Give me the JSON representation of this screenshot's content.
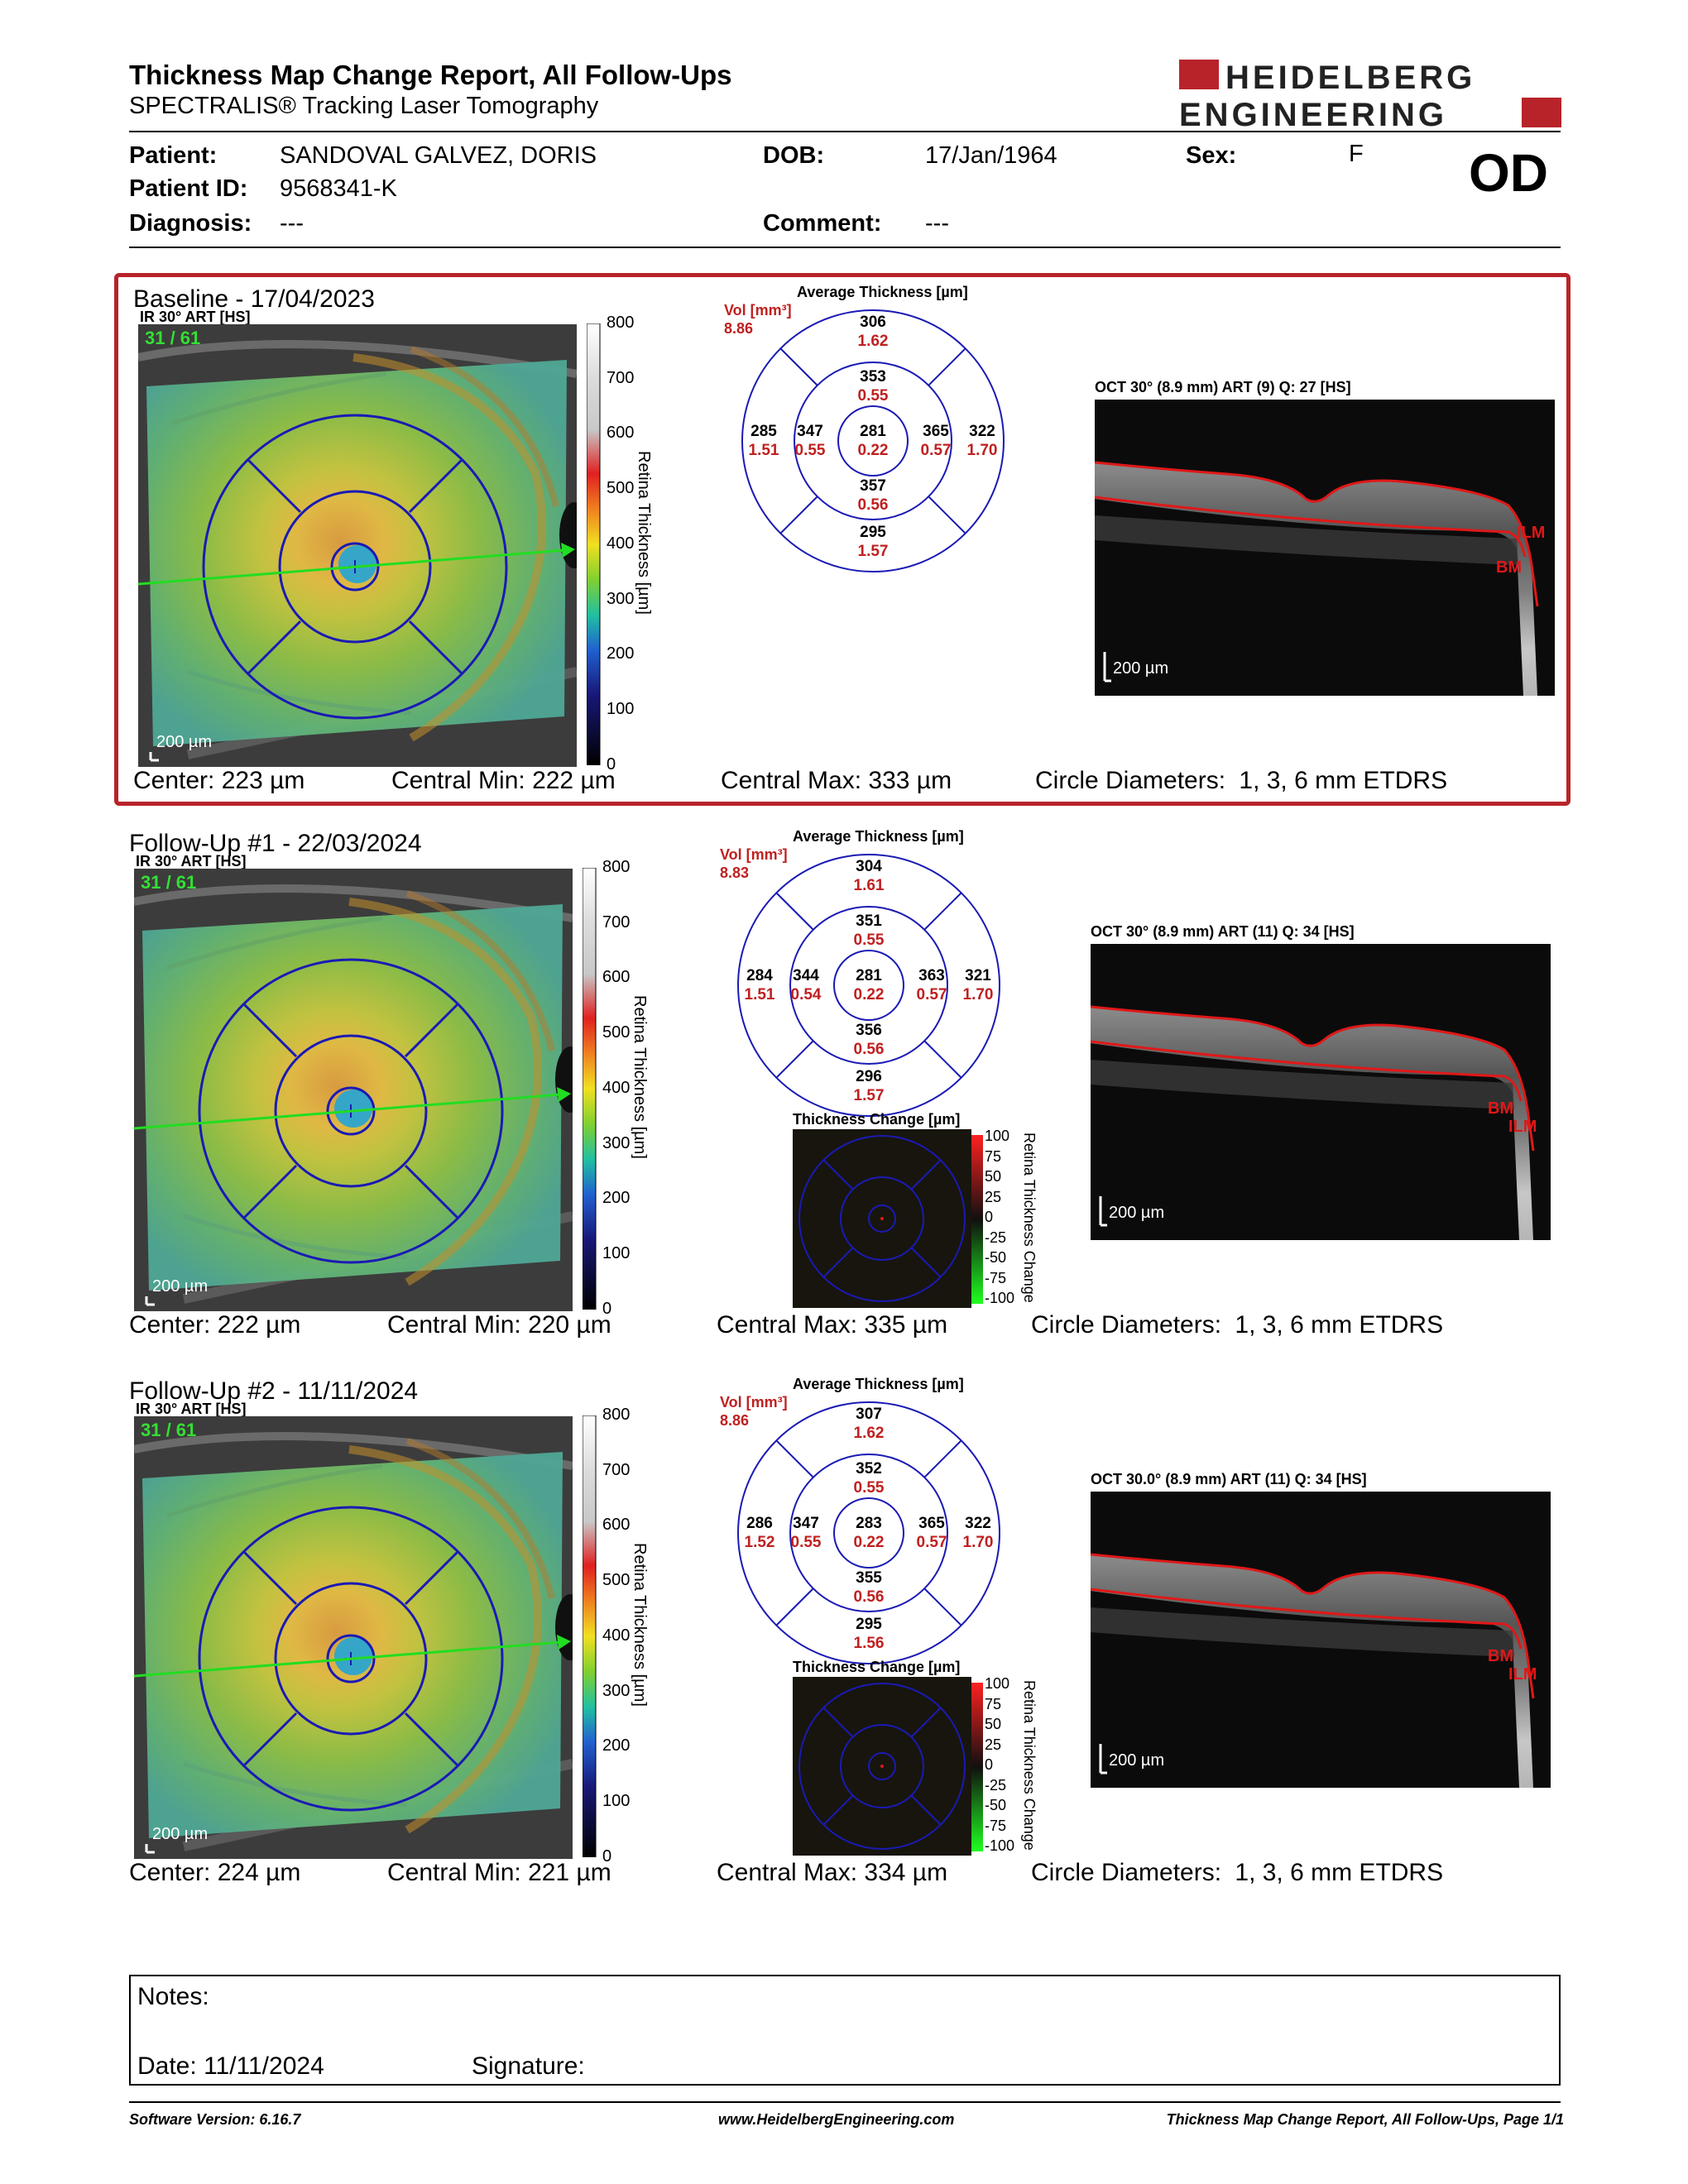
{
  "report": {
    "title": "Thickness Map Change Report, All Follow-Ups",
    "subtitle": "SPECTRALIS® Tracking Laser Tomography"
  },
  "brand": {
    "logo_line1": "HEIDELBERG",
    "logo_line2": "ENGINEERING",
    "color": "#b8232a"
  },
  "patient": {
    "patient_label": "Patient:",
    "name": "SANDOVAL GALVEZ, DORIS",
    "id_label": "Patient ID:",
    "id": "9568341-K",
    "diagnosis_label": "Diagnosis:",
    "diagnosis": "---",
    "dob_label": "DOB:",
    "dob": "17/Jan/1964",
    "comment_label": "Comment:",
    "comment": "---",
    "sex_label": "Sex:",
    "sex": "F",
    "eye": "OD"
  },
  "labels": {
    "ir": "IR 30° ART [HS]",
    "frame": "31 / 61",
    "scalebar": "200 µm",
    "avg_thickness": "Average Thickness [µm]",
    "vol": "Vol [mm³]",
    "thickness_change": "Thickness Change [µm]",
    "colorbar_axis": "Retina Thickness [µm]",
    "change_axis": "Retina Thickness Change",
    "ilm": "ILM",
    "bm": "BM",
    "center": "Center:",
    "central_min": "Central Min:",
    "central_max": "Central Max:",
    "circle_diam": "Circle Diameters:",
    "circle_val": "1, 3, 6 mm ETDRS"
  },
  "colorbar_ticks": [
    "800",
    "700",
    "600",
    "500",
    "400",
    "300",
    "200",
    "100",
    "0"
  ],
  "change_ticks": [
    "100",
    "75",
    "50",
    "25",
    "0",
    "-25",
    "-50",
    "-75",
    "-100"
  ],
  "exams": [
    {
      "title": "Baseline - 17/04/2023",
      "oct_label": "OCT 30° (8.9 mm) ART (9) Q: 27 [HS]",
      "vol_total": "8.86",
      "sectors": {
        "outer_sup": {
          "t": "306",
          "v": "1.62"
        },
        "inner_sup": {
          "t": "353",
          "v": "0.55"
        },
        "outer_nas": {
          "t": "285",
          "v": "1.51"
        },
        "inner_nas": {
          "t": "347",
          "v": "0.55"
        },
        "center": {
          "t": "281",
          "v": "0.22"
        },
        "inner_tmp": {
          "t": "365",
          "v": "0.57"
        },
        "outer_tmp": {
          "t": "322",
          "v": "1.70"
        },
        "inner_inf": {
          "t": "357",
          "v": "0.56"
        },
        "outer_inf": {
          "t": "295",
          "v": "1.57"
        }
      },
      "center": "223 µm",
      "central_min": "222 µm",
      "central_max": "333 µm",
      "has_change": false
    },
    {
      "title": "Follow-Up #1 - 22/03/2024",
      "oct_label": "OCT 30° (8.9 mm) ART (11) Q: 34 [HS]",
      "vol_total": "8.83",
      "sectors": {
        "outer_sup": {
          "t": "304",
          "v": "1.61"
        },
        "inner_sup": {
          "t": "351",
          "v": "0.55"
        },
        "outer_nas": {
          "t": "284",
          "v": "1.51"
        },
        "inner_nas": {
          "t": "344",
          "v": "0.54"
        },
        "center": {
          "t": "281",
          "v": "0.22"
        },
        "inner_tmp": {
          "t": "363",
          "v": "0.57"
        },
        "outer_tmp": {
          "t": "321",
          "v": "1.70"
        },
        "inner_inf": {
          "t": "356",
          "v": "0.56"
        },
        "outer_inf": {
          "t": "296",
          "v": "1.57"
        }
      },
      "center": "222 µm",
      "central_min": "220 µm",
      "central_max": "335 µm",
      "has_change": true
    },
    {
      "title": "Follow-Up #2 - 11/11/2024",
      "oct_label": "OCT 30.0° (8.9 mm) ART (11) Q: 34 [HS]",
      "vol_total": "8.86",
      "sectors": {
        "outer_sup": {
          "t": "307",
          "v": "1.62"
        },
        "inner_sup": {
          "t": "352",
          "v": "0.55"
        },
        "outer_nas": {
          "t": "286",
          "v": "1.52"
        },
        "inner_nas": {
          "t": "347",
          "v": "0.55"
        },
        "center": {
          "t": "283",
          "v": "0.22"
        },
        "inner_tmp": {
          "t": "365",
          "v": "0.57"
        },
        "outer_tmp": {
          "t": "322",
          "v": "1.70"
        },
        "inner_inf": {
          "t": "355",
          "v": "0.56"
        },
        "outer_inf": {
          "t": "295",
          "v": "1.56"
        }
      },
      "center": "224 µm",
      "central_min": "221 µm",
      "central_max": "334 µm",
      "has_change": true
    }
  ],
  "notes": {
    "notes_label": "Notes:",
    "date_label": "Date:",
    "date": "11/11/2024",
    "signature_label": "Signature:"
  },
  "footer": {
    "software": "Software Version: 6.16.7",
    "website": "www.HeidelbergEngineering.com",
    "page": "Thickness Map Change Report, All Follow-Ups, Page 1/1"
  }
}
